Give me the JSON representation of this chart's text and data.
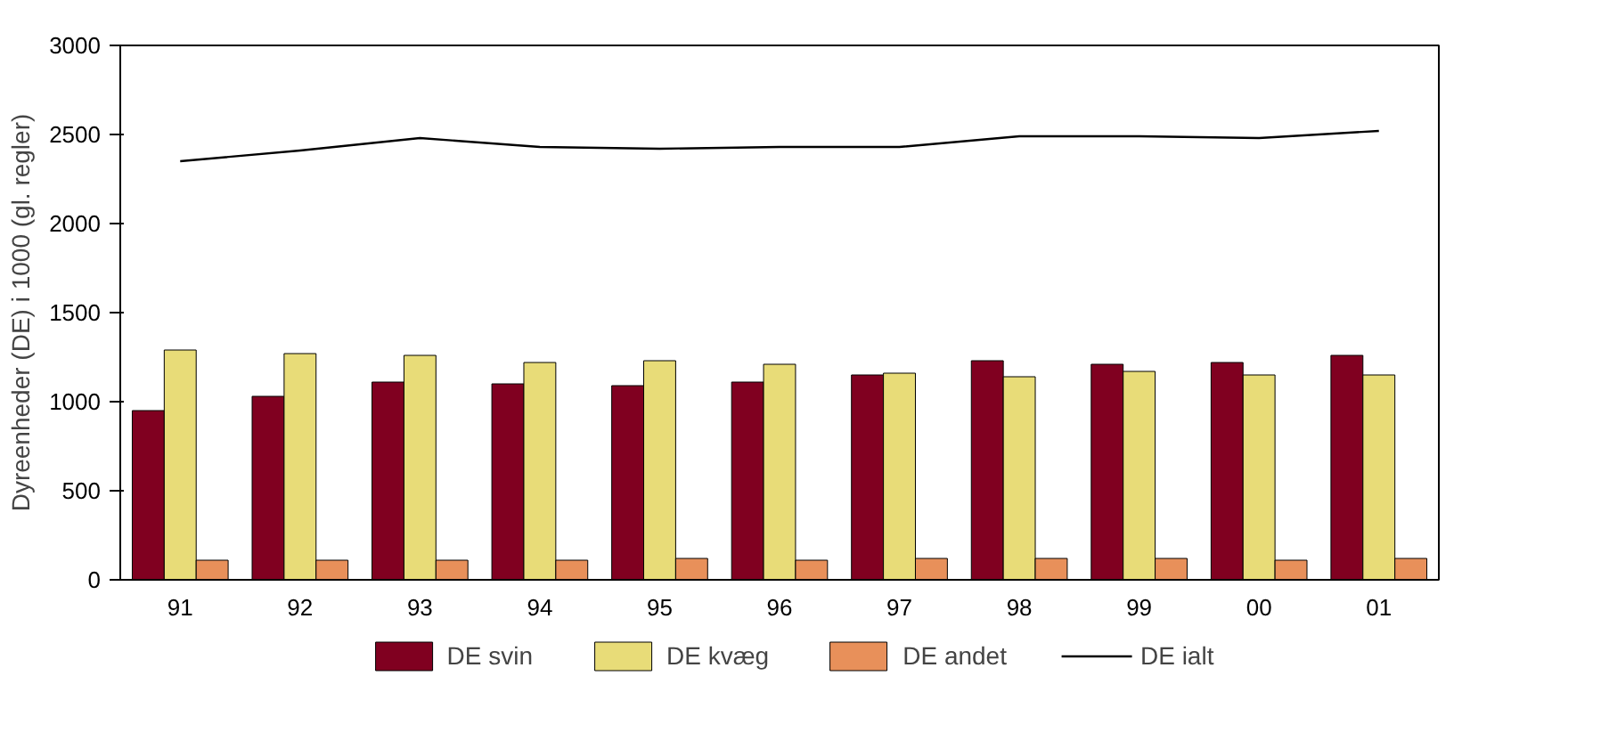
{
  "chart_data": {
    "type": "bar",
    "ylabel": "Dyreenheder (DE) i 1000 (gl. regler)",
    "categories": [
      "91",
      "92",
      "93",
      "94",
      "95",
      "96",
      "97",
      "98",
      "99",
      "00",
      "01"
    ],
    "series": [
      {
        "name": "DE svin",
        "color": "#800020",
        "values": [
          950,
          1030,
          1110,
          1100,
          1090,
          1110,
          1150,
          1230,
          1210,
          1220,
          1260
        ]
      },
      {
        "name": "DE kvæg",
        "color": "#e8dc78",
        "values": [
          1290,
          1270,
          1260,
          1220,
          1230,
          1210,
          1160,
          1140,
          1170,
          1150,
          1150
        ]
      },
      {
        "name": "DE andet",
        "color": "#e8905a",
        "values": [
          110,
          110,
          110,
          110,
          120,
          110,
          120,
          120,
          120,
          110,
          120
        ]
      },
      {
        "name": "DE ialt",
        "color": "#000000",
        "type": "line",
        "values": [
          2350,
          2410,
          2480,
          2430,
          2420,
          2430,
          2430,
          2490,
          2490,
          2480,
          2520
        ]
      }
    ],
    "ylim": [
      0,
      3000
    ],
    "yticks": [
      0,
      500,
      1000,
      1500,
      2000,
      2500,
      3000
    ],
    "grid": false,
    "legend": "bottom"
  }
}
